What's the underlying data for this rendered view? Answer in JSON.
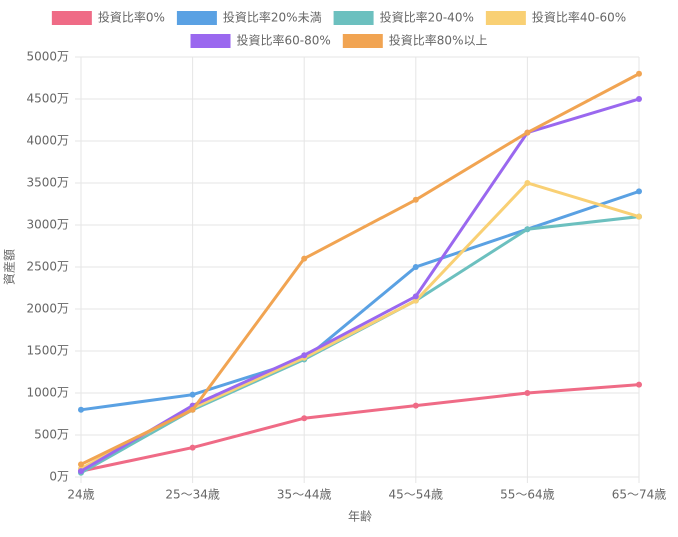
{
  "chart_data": {
    "type": "line",
    "x_label": "年齢",
    "y_label": "資産額",
    "categories": [
      "24歳",
      "25〜34歳",
      "35〜44歳",
      "45〜54歳",
      "55〜64歳",
      "65〜74歳"
    ],
    "series": [
      {
        "name": "投資比率0%",
        "color": "#ef6b86",
        "values": [
          70,
          350,
          700,
          850,
          1000,
          1100
        ]
      },
      {
        "name": "投資比率20%未満",
        "color": "#5aa1e3",
        "values": [
          800,
          980,
          1400,
          2500,
          2950,
          3400
        ]
      },
      {
        "name": "投資比率20-40%",
        "color": "#6cc0bf",
        "values": [
          50,
          800,
          1400,
          2100,
          2950,
          3100
        ]
      },
      {
        "name": "投資比率40-60%",
        "color": "#f9d074",
        "values": [
          100,
          820,
          1420,
          2100,
          3500,
          3100
        ]
      },
      {
        "name": "投資比率60-80%",
        "color": "#9a68ef",
        "values": [
          70,
          850,
          1450,
          2150,
          4100,
          4500
        ]
      },
      {
        "name": "投資比率80%以上",
        "color": "#f1a452",
        "values": [
          150,
          800,
          2600,
          3300,
          4100,
          4800
        ]
      }
    ],
    "ylim": [
      0,
      5000
    ],
    "yticks": [
      {
        "value": 0,
        "label": "0万"
      },
      {
        "value": 500,
        "label": "500万"
      },
      {
        "value": 1000,
        "label": "1000万"
      },
      {
        "value": 1500,
        "label": "1500万"
      },
      {
        "value": 2000,
        "label": "2000万"
      },
      {
        "value": 2500,
        "label": "2500万"
      },
      {
        "value": 3000,
        "label": "3000万"
      },
      {
        "value": 3500,
        "label": "3500万"
      },
      {
        "value": 4000,
        "label": "4000万"
      },
      {
        "value": 4500,
        "label": "4500万"
      },
      {
        "value": 5000,
        "label": "5000万"
      }
    ],
    "grid": true
  }
}
